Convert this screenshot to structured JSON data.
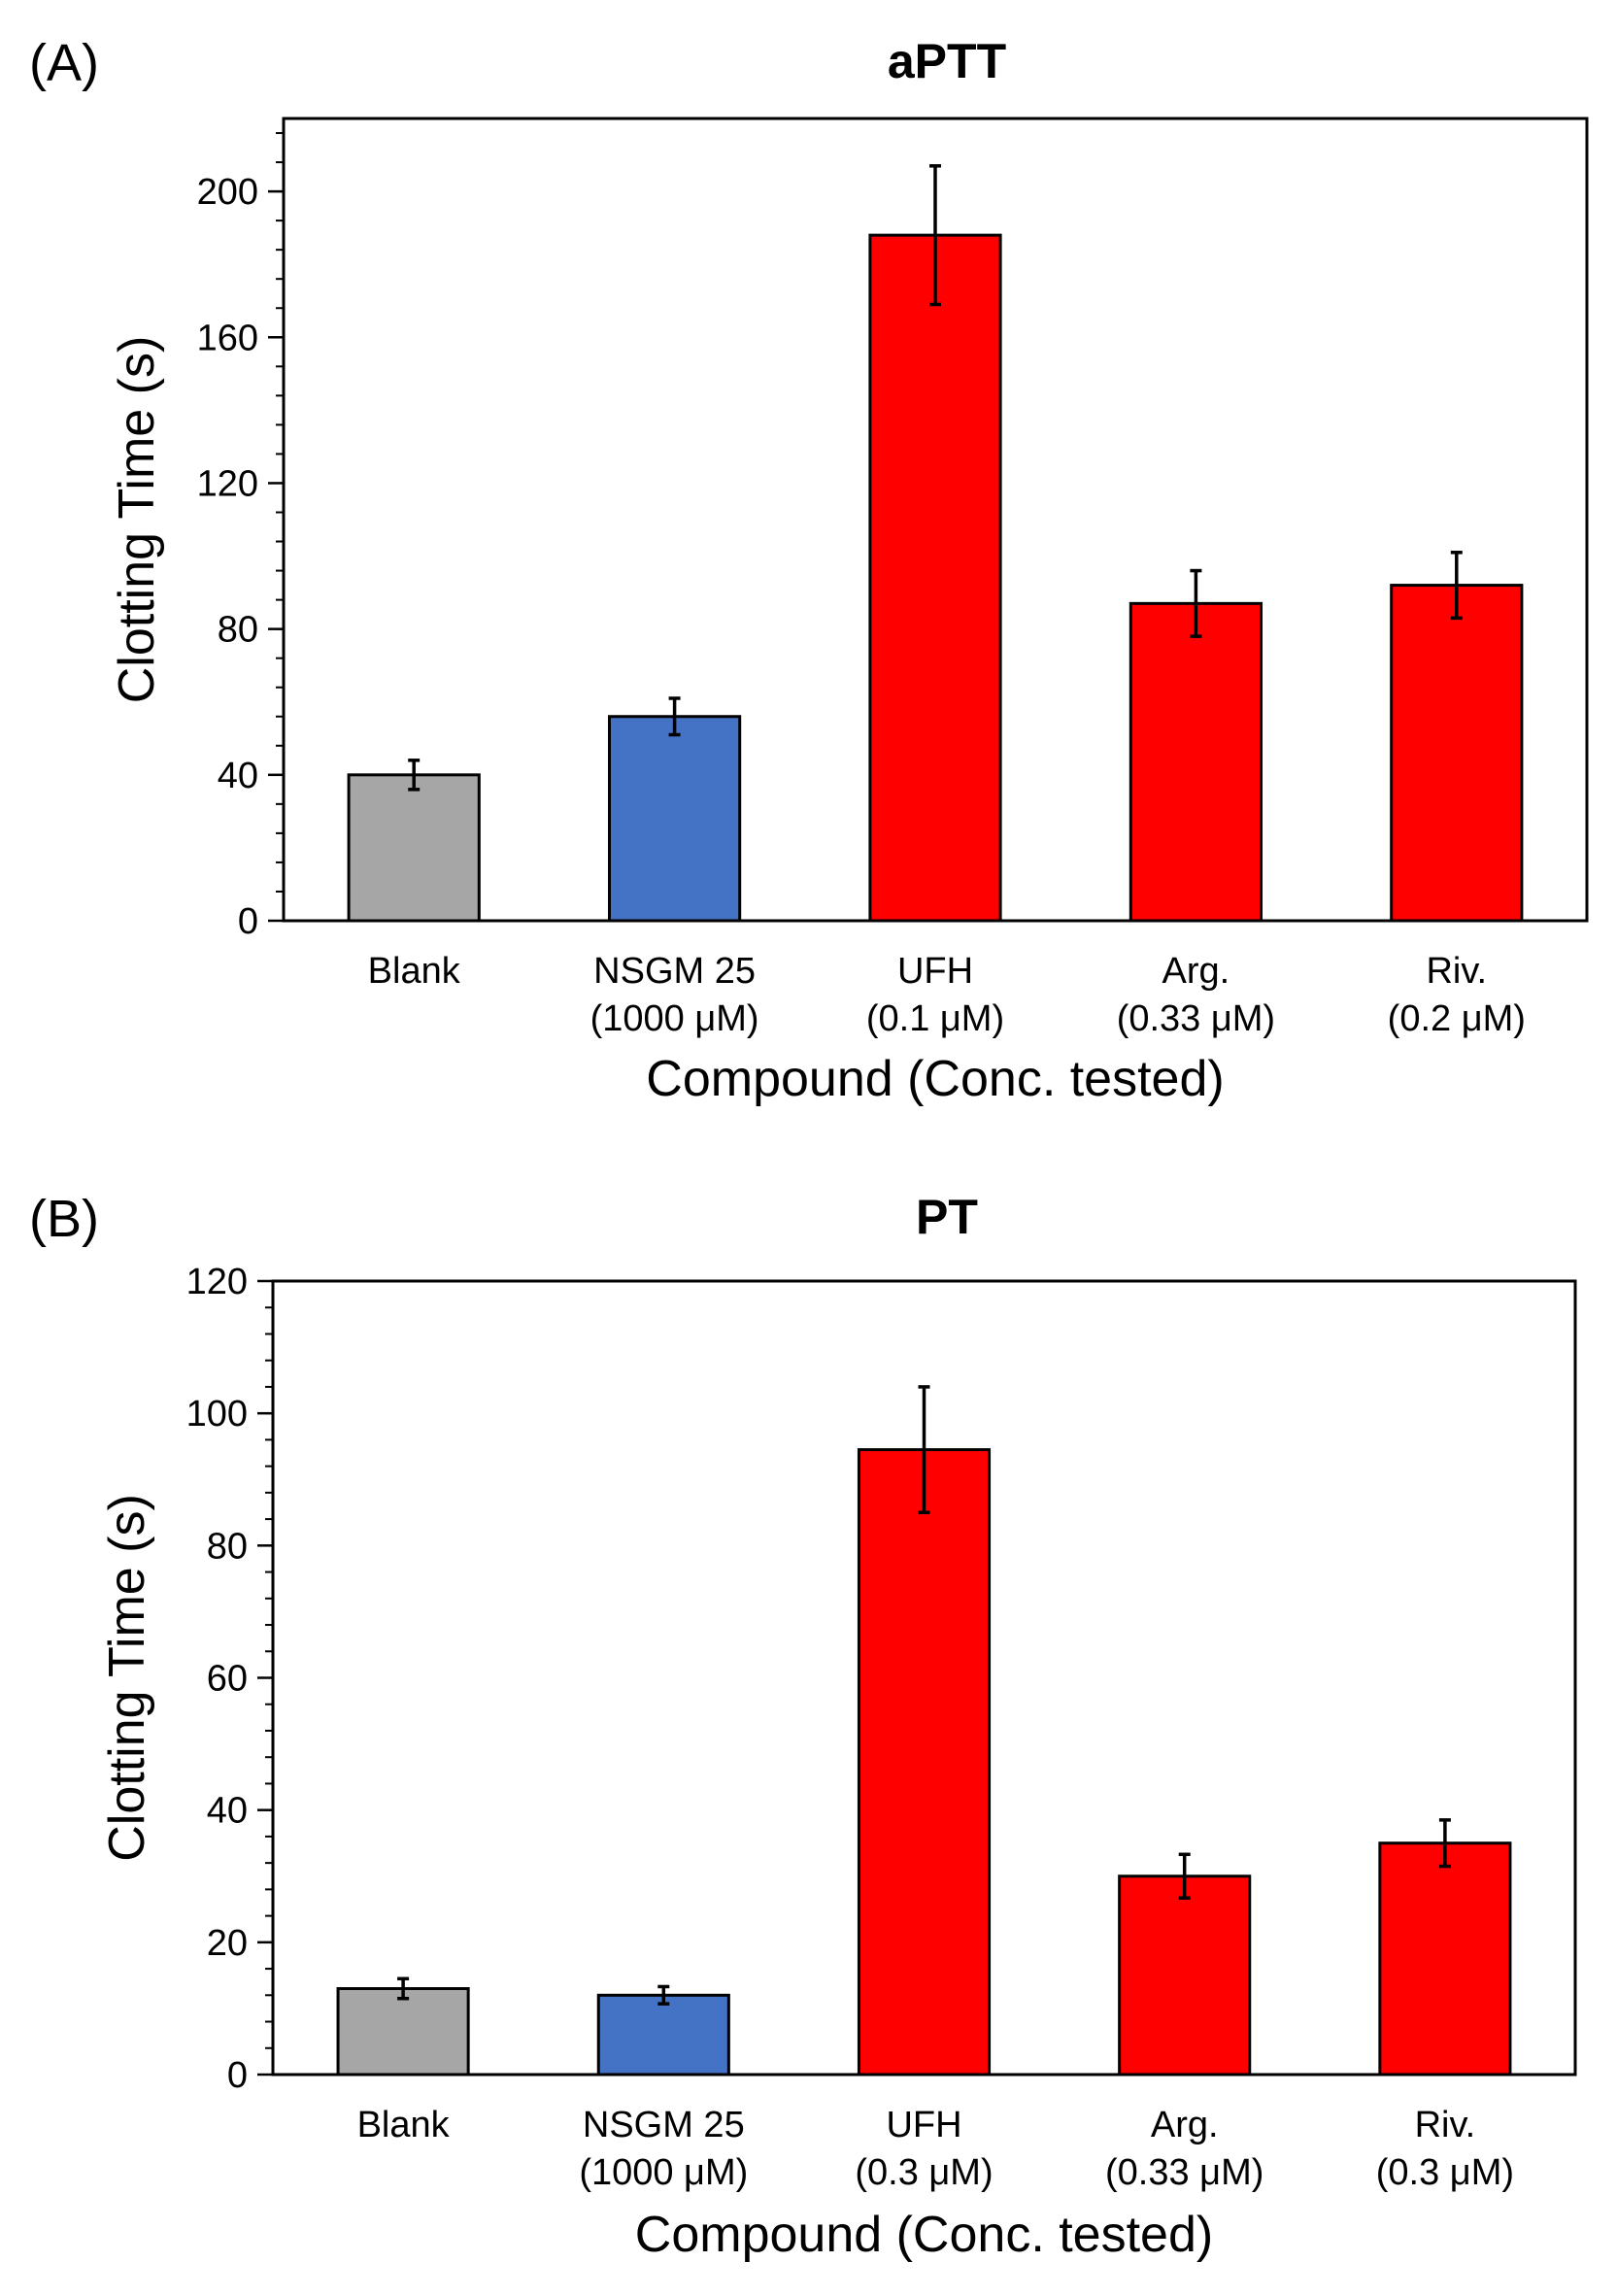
{
  "chart_data": [
    {
      "panel_label": "(A)",
      "type": "bar",
      "title": "aPTT",
      "ylabel": "Clotting Time (s)",
      "xlabel": "Compound (Conc. tested)",
      "ylim": [
        0,
        220
      ],
      "yticks": [
        0,
        40,
        80,
        120,
        160,
        200
      ],
      "grid": false,
      "categories": [
        {
          "line1": "Blank",
          "line2": ""
        },
        {
          "line1": "NSGM 25",
          "line2": "(1000 μM)"
        },
        {
          "line1": "UFH",
          "line2": "(0.1 μM)"
        },
        {
          "line1": "Arg.",
          "line2": "(0.33 μM)"
        },
        {
          "line1": "Riv.",
          "line2": "(0.2 μM)"
        }
      ],
      "values": [
        40,
        56,
        188,
        87,
        92
      ],
      "errors": [
        4,
        5,
        19,
        9,
        9
      ],
      "bar_colors": [
        "#a6a6a6",
        "#4472c4",
        "#ff0000",
        "#ff0000",
        "#ff0000"
      ]
    },
    {
      "panel_label": "(B)",
      "type": "bar",
      "title": "PT",
      "ylabel": "Clotting Time (s)",
      "xlabel": "Compound (Conc. tested)",
      "ylim": [
        0,
        120
      ],
      "yticks": [
        0,
        20,
        40,
        60,
        80,
        100,
        120
      ],
      "grid": false,
      "categories": [
        {
          "line1": "Blank",
          "line2": ""
        },
        {
          "line1": "NSGM 25",
          "line2": "(1000 μM)"
        },
        {
          "line1": "UFH",
          "line2": "(0.3 μM)"
        },
        {
          "line1": "Arg.",
          "line2": "(0.33 μM)"
        },
        {
          "line1": "Riv.",
          "line2": "(0.3 μM)"
        }
      ],
      "values": [
        13,
        12,
        94.5,
        30,
        35
      ],
      "errors": [
        1.5,
        1.3,
        9.5,
        3.3,
        3.5
      ],
      "bar_colors": [
        "#a6a6a6",
        "#4472c4",
        "#ff0000",
        "#ff0000",
        "#ff0000"
      ]
    }
  ]
}
